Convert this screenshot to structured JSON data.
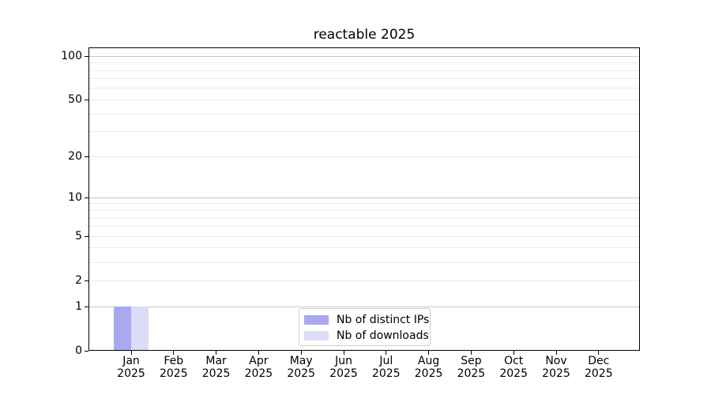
{
  "chart_data": {
    "type": "bar",
    "title": "reactable 2025",
    "x": {
      "months": [
        "Jan",
        "Feb",
        "Mar",
        "Apr",
        "May",
        "Jun",
        "Jul",
        "Aug",
        "Sep",
        "Oct",
        "Nov",
        "Dec"
      ],
      "year": "2025"
    },
    "series": [
      {
        "name": "Nb of distinct IPs",
        "color": "#a9a9f1",
        "values": [
          1,
          0,
          0,
          0,
          0,
          0,
          0,
          0,
          0,
          0,
          0,
          0
        ]
      },
      {
        "name": "Nb of downloads",
        "color": "#dcdcf7",
        "values": [
          1,
          0,
          0,
          0,
          0,
          0,
          0,
          0,
          0,
          0,
          0,
          0
        ]
      }
    ],
    "yscale": "log1p",
    "ylim": [
      0,
      115
    ],
    "yticks": [
      0,
      1,
      2,
      5,
      10,
      20,
      50,
      100
    ],
    "grid": {
      "major": [
        1,
        10,
        100
      ],
      "minor": [
        2,
        3,
        4,
        5,
        6,
        7,
        8,
        9,
        20,
        30,
        40,
        50,
        60,
        70,
        80,
        90
      ]
    },
    "legend": {
      "position": "bottom-center"
    },
    "colors": {
      "grid_major": "#c8c8c8",
      "grid_minor": "#ebebeb",
      "axis": "#000000",
      "text": "#000000",
      "legend_border": "#cccccc",
      "background": "#ffffff"
    }
  }
}
